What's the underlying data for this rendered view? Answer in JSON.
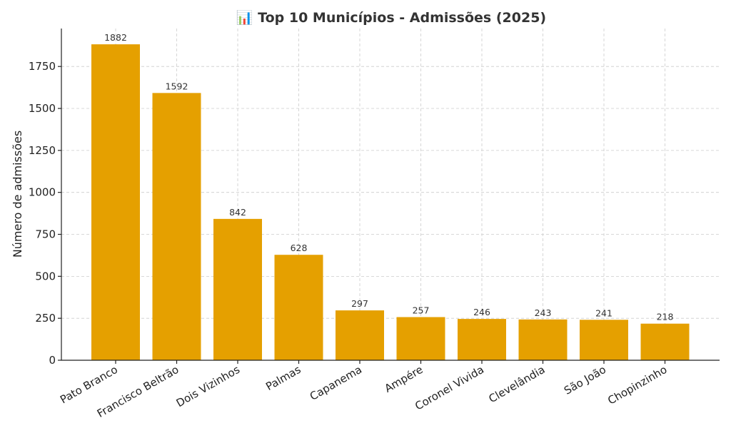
{
  "chart_data": {
    "type": "bar",
    "title": "📊 Top 10 Municípios - Admissões (2025)",
    "xlabel": "",
    "ylabel": "Número de admissões",
    "categories": [
      "Pato Branco",
      "Francisco Beltrão",
      "Dois Vizinhos",
      "Palmas",
      "Capanema",
      "Ampére",
      "Coronel Vivida",
      "Clevelândia",
      "São João",
      "Chopinzinho"
    ],
    "values": [
      1882,
      1592,
      842,
      628,
      297,
      257,
      246,
      243,
      241,
      218
    ],
    "data_labels": [
      "1882",
      "1592",
      "842",
      "628",
      "297",
      "257",
      "246",
      "243",
      "241",
      "218"
    ],
    "yticks": [
      "0",
      "250",
      "500",
      "750",
      "1000",
      "1250",
      "1500",
      "1750"
    ],
    "ylim": [
      0,
      1976
    ],
    "grid": true,
    "bar_color": "#E5A000"
  }
}
